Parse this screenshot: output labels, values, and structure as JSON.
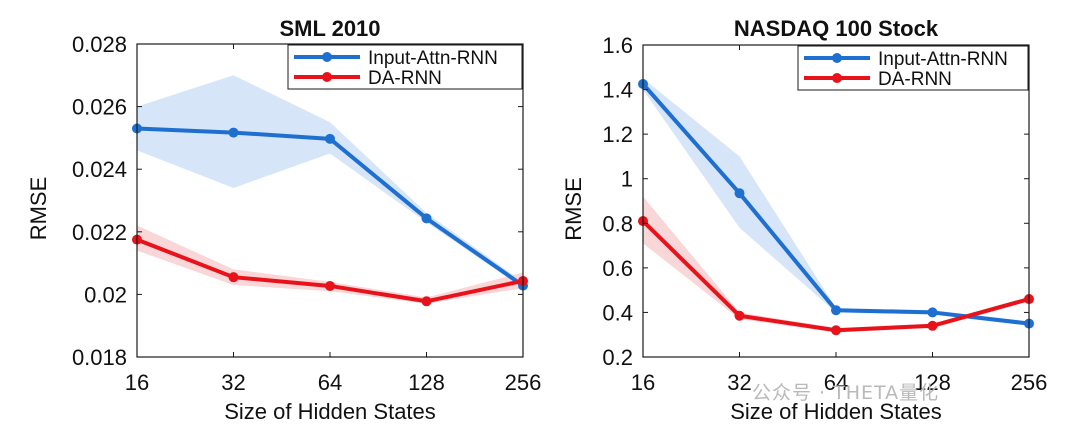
{
  "chart_data": [
    {
      "type": "line",
      "title": "SML 2010",
      "xlabel": "Size of Hidden States",
      "ylabel": "RMSE",
      "x": [
        16,
        32,
        64,
        128,
        256
      ],
      "x_tick_labels": [
        "16",
        "32",
        "64",
        "128",
        "256"
      ],
      "x_scale": "log2",
      "ylim": [
        0.018,
        0.028
      ],
      "y_ticks": [
        0.018,
        0.02,
        0.022,
        0.024,
        0.026,
        0.028
      ],
      "y_tick_labels": [
        "0.018",
        "0.02",
        "0.022",
        "0.024",
        "0.026",
        "0.028"
      ],
      "legend_position": "top-right",
      "series": [
        {
          "name": "Input-Attn-RNN",
          "color": "#1f6fd0",
          "band_color": "#cfe0f7",
          "values": [
            0.0253,
            0.02517,
            0.02497,
            0.02243,
            0.02028
          ],
          "lower": [
            0.0246,
            0.0234,
            0.0245,
            0.0223,
            0.0202
          ],
          "upper": [
            0.026,
            0.027,
            0.0255,
            0.0226,
            0.0204
          ]
        },
        {
          "name": "DA-RNN",
          "color": "#e8121b",
          "band_color": "#f8cfd1",
          "values": [
            0.02175,
            0.02055,
            0.02027,
            0.01978,
            0.02043
          ],
          "lower": [
            0.0214,
            0.0203,
            0.0201,
            0.0197,
            0.0202
          ],
          "upper": [
            0.0222,
            0.0208,
            0.0204,
            0.0199,
            0.0207
          ]
        }
      ]
    },
    {
      "type": "line",
      "title": "NASDAQ 100 Stock",
      "xlabel": "Size of Hidden States",
      "ylabel": "RMSE",
      "x": [
        16,
        32,
        64,
        128,
        256
      ],
      "x_tick_labels": [
        "16",
        "32",
        "64",
        "128",
        "256"
      ],
      "x_scale": "log2",
      "ylim": [
        0.2,
        1.6
      ],
      "y_ticks": [
        0.2,
        0.4,
        0.6,
        0.8,
        1.0,
        1.2,
        1.4,
        1.6
      ],
      "y_tick_labels": [
        "0.2",
        "0.4",
        "0.6",
        "0.8",
        "1",
        "1.2",
        "1.4",
        "1.6"
      ],
      "legend_position": "top-right",
      "series": [
        {
          "name": "Input-Attn-RNN",
          "color": "#1f6fd0",
          "band_color": "#cfe0f7",
          "values": [
            1.425,
            0.935,
            0.41,
            0.4,
            0.35
          ],
          "lower": [
            1.4,
            0.78,
            0.4,
            0.39,
            0.34
          ],
          "upper": [
            1.45,
            1.1,
            0.42,
            0.41,
            0.36
          ]
        },
        {
          "name": "DA-RNN",
          "color": "#e8121b",
          "band_color": "#f8cfd1",
          "values": [
            0.81,
            0.385,
            0.32,
            0.34,
            0.46
          ],
          "lower": [
            0.71,
            0.37,
            0.31,
            0.33,
            0.45
          ],
          "upper": [
            0.92,
            0.4,
            0.33,
            0.35,
            0.47
          ]
        }
      ]
    }
  ],
  "watermark": "公众号 · THETA量化"
}
